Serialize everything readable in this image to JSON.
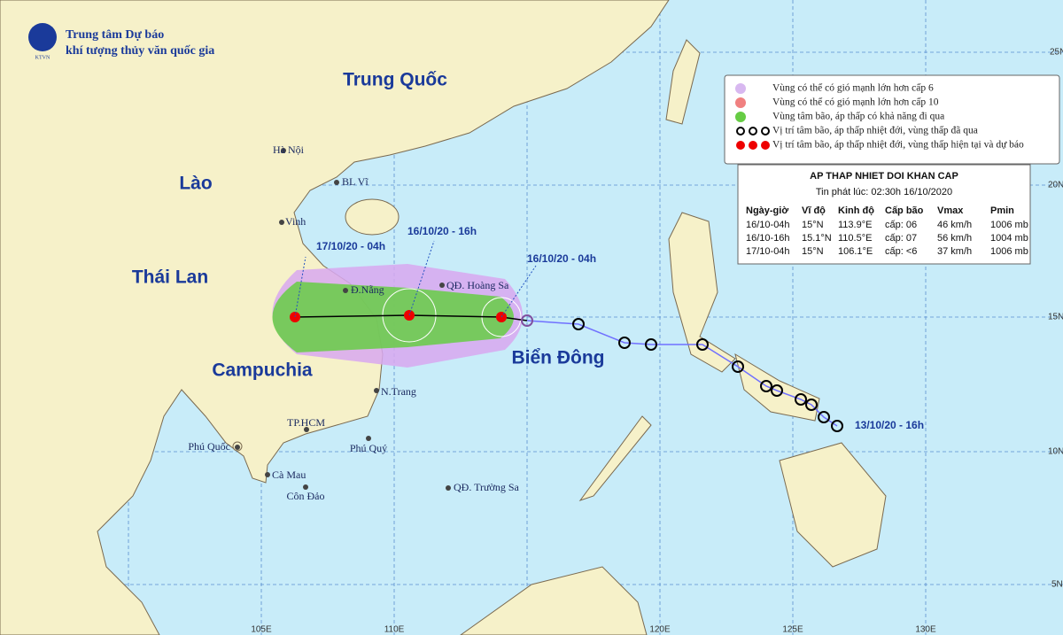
{
  "header": {
    "title": "Trung tâm Dự báo",
    "subtitle": "khí tượng thủy văn quốc gia",
    "logo": "KTVN"
  },
  "regions": [
    "Trung Quốc",
    "Lào",
    "Thái Lan",
    "Campuchia",
    "Biển Đông"
  ],
  "places": [
    "Hà Nội",
    "BL Vĩ",
    "Vinh",
    "Đ.Nẵng",
    "QĐ. Hoàng Sa",
    "N.Trang",
    "TP.HCM",
    "Phú Quốc",
    "Phú Quý",
    "Cà Mau",
    "Côn Đảo",
    "QĐ. Trường Sa"
  ],
  "times": [
    "17/10/20 - 04h",
    "16/10/20 - 16h",
    "16/10/20 - 04h",
    "13/10/20 - 16h"
  ],
  "legend": [
    "Vùng có thể có gió mạnh lớn hơn cấp 6",
    "Vùng có thể có gió mạnh lớn hơn cấp 10",
    "Vùng tâm bão, áp thấp có khả năng đi qua",
    "Vị trí tâm bão, áp thấp nhiệt đới, vùng thấp đã qua",
    "Vị trí tâm bão, áp thấp nhiệt đới, vùng thấp hiện tại và dự báo"
  ],
  "bulletin": {
    "title": "AP THAP NHIET DOI KHAN CAP",
    "issued": "Tin phát lúc: 02:30h 16/10/2020",
    "columns": [
      "Ngày-giờ",
      "Vĩ độ",
      "Kinh độ",
      "Cấp bão",
      "Vmax",
      "Pmin"
    ],
    "rows": [
      [
        "16/10-04h",
        "15°N",
        "113.9°E",
        "cấp: 06",
        "46 km/h",
        "1006 mb"
      ],
      [
        "16/10-16h",
        "15.1°N",
        "110.5°E",
        "cấp: 07",
        "56 km/h",
        "1004 mb"
      ],
      [
        "17/10-04h",
        "15°N",
        "106.1°E",
        "cấp: <6",
        "37 km/h",
        "1006 mb"
      ]
    ]
  },
  "grid": {
    "lat": [
      "25N",
      "20N",
      "15N",
      "10N",
      "5N"
    ],
    "lon": [
      "105E",
      "110E",
      "120E",
      "125E",
      "130E"
    ]
  }
}
